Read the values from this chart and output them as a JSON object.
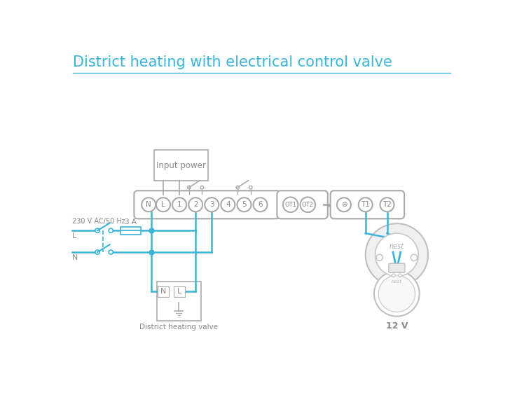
{
  "title": "District heating with electrical control valve",
  "title_color": "#3ab5d8",
  "wire_color": "#3ab5d8",
  "outline_color": "#aaaaaa",
  "text_color": "#888888",
  "bg_color": "#ffffff",
  "input_power_label": "Input power",
  "fuse_label": "3 A",
  "left_label": "230 V AC/50 Hz",
  "L_label": "L",
  "N_label": "N",
  "bottom_label": "District heating valve",
  "nest_label": "12 V",
  "terminal_labels": [
    "N",
    "L",
    "1",
    "2",
    "3",
    "4",
    "5",
    "6"
  ],
  "ot_labels": [
    "OT1",
    "OT2"
  ],
  "t_labels": [
    "⊕",
    "T1",
    "T2"
  ]
}
